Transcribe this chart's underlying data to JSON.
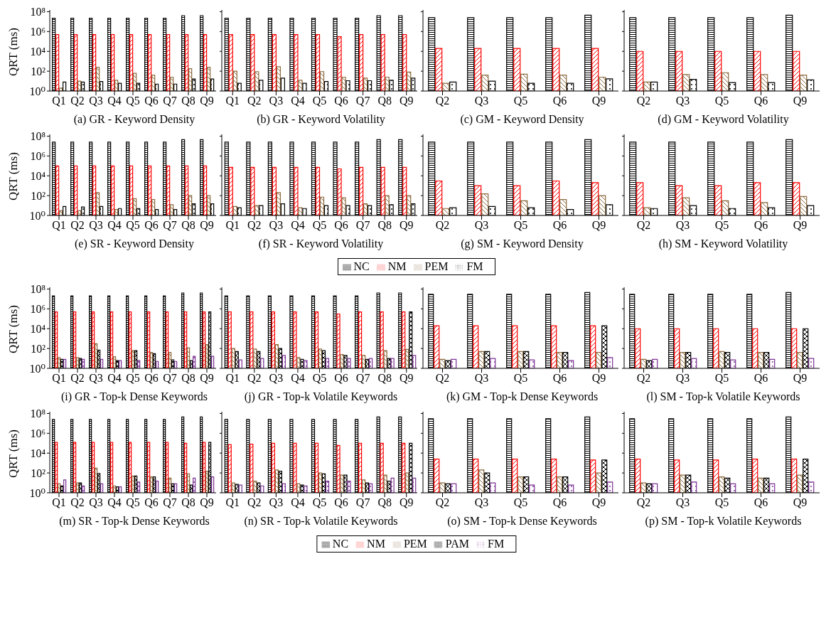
{
  "chart_data": [
    {
      "type": "bar",
      "title": "(a) GR - Keyword Density",
      "ylabel": "QRT (ms)",
      "log": "y",
      "ylim": [
        1,
        150000000
      ],
      "yticks": [
        {
          "value": 1,
          "label": "10⁰"
        },
        {
          "value": 100,
          "label": "10²"
        },
        {
          "value": 10000,
          "label": "10⁴"
        },
        {
          "value": 1000000,
          "label": "10⁶"
        },
        {
          "value": 100000000,
          "label": "10⁸"
        }
      ],
      "categories": [
        "Q1",
        "Q2",
        "Q3",
        "Q4",
        "Q5",
        "Q6",
        "Q7",
        "Q8",
        "Q9"
      ],
      "series": [
        {
          "color": "#000000",
          "values": [
            22000000,
            22000000,
            22000000,
            22000000,
            22000000,
            22000000,
            22000000,
            40000000,
            40000000
          ]
        },
        {
          "color": "#ff0000",
          "values": [
            500000,
            500000,
            500000,
            500000,
            500000,
            500000,
            500000,
            500000,
            500000
          ]
        },
        {
          "color": "#8b6a3e",
          "values": [
            2,
            10,
            250,
            12,
            60,
            40,
            25,
            180,
            250
          ]
        },
        {
          "color": "#000000",
          "values": [
            8,
            8,
            9,
            6,
            6,
            5,
            5,
            16,
            16
          ]
        }
      ]
    },
    {
      "type": "bar",
      "title": "(b) GR - Keyword Volatility",
      "log": "y",
      "tick_labels": "x",
      "ylim": [
        1,
        150000000
      ],
      "yticks": [
        {
          "value": 1,
          "label": null
        },
        {
          "value": 100,
          "label": null
        },
        {
          "value": 10000,
          "label": null
        },
        {
          "value": 1000000,
          "label": null
        },
        {
          "value": 100000000,
          "label": null
        }
      ],
      "categories": [
        "Q1",
        "Q2",
        "Q3",
        "Q4",
        "Q5",
        "Q6",
        "Q7",
        "Q8",
        "Q9"
      ],
      "series": [
        {
          "color": "#000000",
          "values": [
            22000000,
            22000000,
            22000000,
            22000000,
            22000000,
            22000000,
            22000000,
            40000000,
            40000000
          ]
        },
        {
          "color": "#ff0000",
          "values": [
            500000,
            500000,
            500000,
            500000,
            500000,
            300000,
            500000,
            500000,
            500000
          ]
        },
        {
          "color": "#8b6a3e",
          "values": [
            100,
            90,
            280,
            12,
            90,
            25,
            20,
            25,
            80
          ]
        },
        {
          "color": "#000000",
          "values": [
            6,
            12,
            20,
            6,
            9,
            11,
            11,
            12,
            20
          ]
        }
      ]
    },
    {
      "type": "bar",
      "title": "(c) GM - Keyword Density",
      "log": "y",
      "tick_labels": "x",
      "ylim": [
        1,
        150000000
      ],
      "yticks": [
        {
          "value": 1,
          "label": null
        },
        {
          "value": 100,
          "label": null
        },
        {
          "value": 10000,
          "label": null
        },
        {
          "value": 1000000,
          "label": null
        },
        {
          "value": 100000000,
          "label": null
        }
      ],
      "categories": [
        "Q2",
        "Q3",
        "Q5",
        "Q6",
        "Q9"
      ],
      "series": [
        {
          "color": "#000000",
          "values": [
            25000000,
            25000000,
            25000000,
            25000000,
            45000000
          ]
        },
        {
          "color": "#ff0000",
          "values": [
            20000,
            20000,
            20000,
            20000,
            20000
          ]
        },
        {
          "color": "#8b6a3e",
          "values": [
            6,
            40,
            50,
            40,
            25
          ]
        },
        {
          "color": "#000000",
          "values": [
            8,
            10,
            6,
            6,
            17
          ]
        }
      ]
    },
    {
      "type": "bar",
      "title": "(d) GM - Keyword Volatility",
      "log": "y",
      "tick_labels": "x",
      "ylim": [
        1,
        150000000
      ],
      "yticks": [
        {
          "value": 1,
          "label": null
        },
        {
          "value": 100,
          "label": null
        },
        {
          "value": 10000,
          "label": null
        },
        {
          "value": 1000000,
          "label": null
        },
        {
          "value": 100000000,
          "label": null
        }
      ],
      "categories": [
        "Q2",
        "Q3",
        "Q5",
        "Q6",
        "Q9"
      ],
      "series": [
        {
          "color": "#000000",
          "values": [
            25000000,
            25000000,
            25000000,
            25000000,
            45000000
          ]
        },
        {
          "color": "#ff0000",
          "values": [
            10000,
            10000,
            10000,
            10000,
            10000
          ]
        },
        {
          "color": "#8b6a3e",
          "values": [
            8,
            45,
            70,
            45,
            40
          ]
        },
        {
          "color": "#000000",
          "values": [
            8,
            15,
            7,
            7,
            13
          ]
        }
      ]
    },
    {
      "type": "bar",
      "title": "(e) SR - Keyword Density",
      "ylabel": "QRT (ms)",
      "log": "y",
      "ylim": [
        1,
        150000000
      ],
      "yticks": [
        {
          "value": 1,
          "label": "10⁰"
        },
        {
          "value": 100,
          "label": "10²"
        },
        {
          "value": 10000,
          "label": "10⁴"
        },
        {
          "value": 1000000,
          "label": "10⁶"
        },
        {
          "value": 100000000,
          "label": "10⁸"
        }
      ],
      "categories": [
        "Q1",
        "Q2",
        "Q3",
        "Q4",
        "Q5",
        "Q6",
        "Q7",
        "Q8",
        "Q9"
      ],
      "series": [
        {
          "color": "#000000",
          "values": [
            25000000,
            25000000,
            25000000,
            25000000,
            25000000,
            25000000,
            25000000,
            45000000,
            45000000
          ]
        },
        {
          "color": "#ff0000",
          "values": [
            100000,
            100000,
            100000,
            100000,
            100000,
            100000,
            100000,
            100000,
            100000
          ]
        },
        {
          "color": "#8b6a3e",
          "values": [
            3,
            3,
            200,
            4,
            50,
            40,
            12,
            100,
            100
          ]
        },
        {
          "color": "#000000",
          "values": [
            8,
            7,
            8,
            5,
            5,
            4,
            4,
            15,
            15
          ]
        }
      ]
    },
    {
      "type": "bar",
      "title": "(f) SR - Keyword Volatility",
      "log": "y",
      "tick_labels": "x",
      "ylim": [
        1,
        150000000
      ],
      "yticks": [
        {
          "value": 1,
          "label": null
        },
        {
          "value": 100,
          "label": null
        },
        {
          "value": 10000,
          "label": null
        },
        {
          "value": 1000000,
          "label": null
        },
        {
          "value": 100000000,
          "label": null
        }
      ],
      "categories": [
        "Q1",
        "Q2",
        "Q3",
        "Q4",
        "Q5",
        "Q6",
        "Q7",
        "Q8",
        "Q9"
      ],
      "series": [
        {
          "color": "#000000",
          "values": [
            25000000,
            25000000,
            25000000,
            25000000,
            25000000,
            25000000,
            25000000,
            45000000,
            45000000
          ]
        },
        {
          "color": "#ff0000",
          "values": [
            70000,
            70000,
            70000,
            70000,
            70000,
            50000,
            70000,
            70000,
            70000
          ]
        },
        {
          "color": "#8b6a3e",
          "values": [
            8,
            10,
            200,
            6,
            70,
            60,
            15,
            100,
            100
          ]
        },
        {
          "color": "#000000",
          "values": [
            6,
            10,
            15,
            5,
            10,
            10,
            10,
            12,
            15
          ]
        }
      ]
    },
    {
      "type": "bar",
      "title": "(g) SM - Keyword Density",
      "log": "y",
      "tick_labels": "x",
      "ylim": [
        1,
        150000000
      ],
      "yticks": [
        {
          "value": 1,
          "label": null
        },
        {
          "value": 100,
          "label": null
        },
        {
          "value": 10000,
          "label": null
        },
        {
          "value": 1000000,
          "label": null
        },
        {
          "value": 100000000,
          "label": null
        }
      ],
      "categories": [
        "Q2",
        "Q3",
        "Q5",
        "Q6",
        "Q9"
      ],
      "series": [
        {
          "color": "#000000",
          "values": [
            25000000,
            25000000,
            25000000,
            25000000,
            45000000
          ]
        },
        {
          "color": "#ff0000",
          "values": [
            3000,
            1000,
            1000,
            3000,
            2000
          ]
        },
        {
          "color": "#8b6a3e",
          "values": [
            5,
            150,
            30,
            40,
            100
          ]
        },
        {
          "color": "#000000",
          "values": [
            6,
            8,
            6,
            4,
            12
          ]
        }
      ]
    },
    {
      "type": "bar",
      "title": "(h) SM - Keyword Volatility",
      "log": "y",
      "tick_labels": "x",
      "legend": "bottom",
      "ylim": [
        1,
        150000000
      ],
      "yticks": [
        {
          "value": 1,
          "label": null
        },
        {
          "value": 100,
          "label": null
        },
        {
          "value": 10000,
          "label": null
        },
        {
          "value": 1000000,
          "label": null
        },
        {
          "value": 100000000,
          "label": null
        }
      ],
      "categories": [
        "Q2",
        "Q3",
        "Q5",
        "Q6",
        "Q9"
      ],
      "series": [
        {
          "name": "NC",
          "color": "#000000",
          "values": [
            25000000,
            25000000,
            25000000,
            25000000,
            45000000
          ]
        },
        {
          "name": "NM",
          "color": "#ff0000",
          "values": [
            2000,
            1000,
            1000,
            2000,
            2000
          ]
        },
        {
          "name": "PEM",
          "color": "#8b6a3e",
          "values": [
            6,
            60,
            30,
            20,
            80
          ]
        },
        {
          "name": "FM",
          "color": "#000000",
          "values": [
            5,
            10,
            5,
            6,
            10
          ]
        }
      ]
    },
    {
      "type": "bar",
      "title": "(i) GR - Top-k Dense Keywords",
      "ylabel": "QRT (ms)",
      "log": "y",
      "ylim": [
        1,
        150000000
      ],
      "yticks": [
        {
          "value": 1,
          "label": "10⁰"
        },
        {
          "value": 100,
          "label": "10²"
        },
        {
          "value": 10000,
          "label": "10⁴"
        },
        {
          "value": 1000000,
          "label": "10⁶"
        },
        {
          "value": 100000000,
          "label": "10⁸"
        }
      ],
      "categories": [
        "Q1",
        "Q2",
        "Q3",
        "Q4",
        "Q5",
        "Q6",
        "Q7",
        "Q8",
        "Q9"
      ],
      "series": [
        {
          "color": "#000000",
          "values": [
            20000000,
            20000000,
            20000000,
            20000000,
            20000000,
            20000000,
            20000000,
            40000000,
            40000000
          ]
        },
        {
          "color": "#ff0000",
          "values": [
            500000,
            500000,
            500000,
            500000,
            500000,
            500000,
            500000,
            500000,
            500000
          ]
        },
        {
          "color": "#8b6a3e",
          "values": [
            12,
            12,
            300,
            15,
            60,
            40,
            40,
            120,
            250
          ]
        },
        {
          "color": "#000000",
          "values": [
            8,
            10,
            70,
            6,
            60,
            30,
            7,
            6,
            500000
          ]
        },
        {
          "color": "#7b3294",
          "values": [
            8,
            8,
            8,
            6,
            6,
            5,
            5,
            16,
            16
          ]
        }
      ]
    },
    {
      "type": "bar",
      "title": "(j) GR - Top-k Volatile Keywords",
      "log": "y",
      "tick_labels": "x",
      "ylim": [
        1,
        150000000
      ],
      "yticks": [
        {
          "value": 1,
          "label": null
        },
        {
          "value": 100,
          "label": null
        },
        {
          "value": 10000,
          "label": null
        },
        {
          "value": 1000000,
          "label": null
        },
        {
          "value": 100000000,
          "label": null
        }
      ],
      "categories": [
        "Q1",
        "Q2",
        "Q3",
        "Q4",
        "Q5",
        "Q6",
        "Q7",
        "Q8",
        "Q9"
      ],
      "series": [
        {
          "color": "#000000",
          "values": [
            20000000,
            20000000,
            20000000,
            20000000,
            20000000,
            20000000,
            20000000,
            40000000,
            40000000
          ]
        },
        {
          "color": "#ff0000",
          "values": [
            500000,
            500000,
            500000,
            500000,
            500000,
            300000,
            500000,
            500000,
            500000
          ]
        },
        {
          "color": "#8b6a3e",
          "values": [
            100,
            90,
            250,
            12,
            90,
            25,
            20,
            60,
            80
          ]
        },
        {
          "color": "#000000",
          "values": [
            50,
            50,
            100,
            8,
            60,
            20,
            8,
            10,
            500000
          ]
        },
        {
          "color": "#7b3294",
          "values": [
            7,
            10,
            20,
            6,
            10,
            10,
            10,
            10,
            20
          ]
        }
      ]
    },
    {
      "type": "bar",
      "title": "(k) GM - Top-k Dense Keywords",
      "log": "y",
      "tick_labels": "x",
      "ylim": [
        1,
        150000000
      ],
      "yticks": [
        {
          "value": 1,
          "label": null
        },
        {
          "value": 100,
          "label": null
        },
        {
          "value": 10000,
          "label": null
        },
        {
          "value": 1000000,
          "label": null
        },
        {
          "value": 100000000,
          "label": null
        }
      ],
      "categories": [
        "Q2",
        "Q3",
        "Q5",
        "Q6",
        "Q9"
      ],
      "series": [
        {
          "color": "#000000",
          "values": [
            30000000,
            30000000,
            30000000,
            30000000,
            45000000
          ]
        },
        {
          "color": "#ff0000",
          "values": [
            20000,
            20000,
            20000,
            20000,
            20000
          ]
        },
        {
          "color": "#8b6a3e",
          "values": [
            8,
            50,
            50,
            40,
            40
          ]
        },
        {
          "color": "#000000",
          "values": [
            6,
            50,
            50,
            40,
            20000
          ]
        },
        {
          "color": "#7b3294",
          "values": [
            8,
            10,
            7,
            6,
            12
          ]
        }
      ]
    },
    {
      "type": "bar",
      "title": "(l) SM - Top-k Volatile Keywords",
      "log": "y",
      "tick_labels": "x",
      "ylim": [
        1,
        150000000
      ],
      "yticks": [
        {
          "value": 1,
          "label": null
        },
        {
          "value": 100,
          "label": null
        },
        {
          "value": 10000,
          "label": null
        },
        {
          "value": 1000000,
          "label": null
        },
        {
          "value": 100000000,
          "label": null
        }
      ],
      "categories": [
        "Q2",
        "Q3",
        "Q5",
        "Q6",
        "Q9"
      ],
      "series": [
        {
          "color": "#000000",
          "values": [
            30000000,
            30000000,
            30000000,
            30000000,
            45000000
          ]
        },
        {
          "color": "#ff0000",
          "values": [
            10000,
            10000,
            10000,
            10000,
            10000
          ]
        },
        {
          "color": "#8b6a3e",
          "values": [
            8,
            40,
            50,
            40,
            40
          ]
        },
        {
          "color": "#000000",
          "values": [
            6,
            40,
            40,
            40,
            10000
          ]
        },
        {
          "color": "#7b3294",
          "values": [
            8,
            10,
            7,
            8,
            10
          ]
        }
      ]
    },
    {
      "type": "bar",
      "title": "(m) SR - Top-k Dense Keywords",
      "ylabel": "QRT (ms)",
      "log": "y",
      "ylim": [
        1,
        150000000
      ],
      "yticks": [
        {
          "value": 1,
          "label": "10⁰"
        },
        {
          "value": 100,
          "label": "10²"
        },
        {
          "value": 10000,
          "label": "10⁴"
        },
        {
          "value": 1000000,
          "label": "10⁶"
        },
        {
          "value": 100000000,
          "label": "10⁸"
        }
      ],
      "categories": [
        "Q1",
        "Q2",
        "Q3",
        "Q4",
        "Q5",
        "Q6",
        "Q7",
        "Q8",
        "Q9"
      ],
      "series": [
        {
          "color": "#000000",
          "values": [
            25000000,
            25000000,
            25000000,
            25000000,
            25000000,
            25000000,
            25000000,
            45000000,
            45000000
          ]
        },
        {
          "color": "#ff0000",
          "values": [
            120000,
            120000,
            120000,
            120000,
            120000,
            120000,
            120000,
            100000,
            120000
          ]
        },
        {
          "color": "#8b6a3e",
          "values": [
            8,
            10,
            300,
            5,
            50,
            40,
            30,
            80,
            150
          ]
        },
        {
          "color": "#000000",
          "values": [
            5,
            10,
            90,
            4,
            50,
            40,
            8,
            6,
            120000
          ]
        },
        {
          "color": "#7b3294",
          "values": [
            20,
            5,
            8,
            4,
            12,
            15,
            8,
            30,
            40
          ]
        }
      ]
    },
    {
      "type": "bar",
      "title": "(n) SR - Top-k Volatile Keywords",
      "log": "y",
      "tick_labels": "x",
      "ylim": [
        1,
        150000000
      ],
      "yticks": [
        {
          "value": 1,
          "label": null
        },
        {
          "value": 100,
          "label": null
        },
        {
          "value": 10000,
          "label": null
        },
        {
          "value": 1000000,
          "label": null
        },
        {
          "value": 100000000,
          "label": null
        }
      ],
      "categories": [
        "Q1",
        "Q2",
        "Q3",
        "Q4",
        "Q5",
        "Q6",
        "Q7",
        "Q8",
        "Q9"
      ],
      "series": [
        {
          "color": "#000000",
          "values": [
            25000000,
            25000000,
            25000000,
            25000000,
            25000000,
            25000000,
            25000000,
            45000000,
            45000000
          ]
        },
        {
          "color": "#ff0000",
          "values": [
            70000,
            80000,
            100000,
            100000,
            100000,
            60000,
            100000,
            100000,
            100000
          ]
        },
        {
          "color": "#8b6a3e",
          "values": [
            10,
            15,
            200,
            8,
            100,
            60,
            20,
            60,
            100
          ]
        },
        {
          "color": "#000000",
          "values": [
            7,
            10,
            150,
            6,
            80,
            60,
            10,
            15,
            100000
          ]
        },
        {
          "color": "#7b3294",
          "values": [
            6,
            5,
            8,
            5,
            15,
            15,
            8,
            30,
            30
          ]
        }
      ]
    },
    {
      "type": "bar",
      "title": "(o) SM - Top-k Dense Keywords",
      "log": "y",
      "tick_labels": "x",
      "ylim": [
        1,
        150000000
      ],
      "yticks": [
        {
          "value": 1,
          "label": null
        },
        {
          "value": 100,
          "label": null
        },
        {
          "value": 10000,
          "label": null
        },
        {
          "value": 1000000,
          "label": null
        },
        {
          "value": 100000000,
          "label": null
        }
      ],
      "categories": [
        "Q2",
        "Q3",
        "Q5",
        "Q6",
        "Q9"
      ],
      "series": [
        {
          "color": "#000000",
          "values": [
            30000000,
            30000000,
            30000000,
            30000000,
            45000000
          ]
        },
        {
          "color": "#ff0000",
          "values": [
            2500,
            2500,
            2500,
            2500,
            2000
          ]
        },
        {
          "color": "#8b6a3e",
          "values": [
            10,
            200,
            40,
            40,
            100
          ]
        },
        {
          "color": "#000000",
          "values": [
            8,
            100,
            40,
            40,
            2000
          ]
        },
        {
          "color": "#7b3294",
          "values": [
            8,
            10,
            6,
            6,
            12
          ]
        }
      ]
    },
    {
      "type": "bar",
      "title": "(p) SM - Top-k Volatile Keywords",
      "log": "y",
      "tick_labels": "x",
      "legend": "bottom",
      "ylim": [
        1,
        150000000
      ],
      "yticks": [
        {
          "value": 1,
          "label": null
        },
        {
          "value": 100,
          "label": null
        },
        {
          "value": 10000,
          "label": null
        },
        {
          "value": 1000000,
          "label": null
        },
        {
          "value": 100000000,
          "label": null
        }
      ],
      "categories": [
        "Q2",
        "Q3",
        "Q5",
        "Q6",
        "Q9"
      ],
      "series": [
        {
          "name": "NC",
          "color": "#000000",
          "values": [
            30000000,
            30000000,
            30000000,
            30000000,
            45000000
          ]
        },
        {
          "name": "NM",
          "color": "#ff0000",
          "values": [
            2500,
            2000,
            2000,
            2500,
            2500
          ]
        },
        {
          "name": "PEM",
          "color": "#8b6a3e",
          "values": [
            10,
            60,
            40,
            30,
            60
          ]
        },
        {
          "name": "PAM",
          "color": "#000000",
          "values": [
            8,
            60,
            30,
            30,
            2500
          ]
        },
        {
          "name": "FM",
          "color": "#7b3294",
          "values": [
            8,
            12,
            8,
            8,
            12
          ]
        }
      ]
    }
  ]
}
